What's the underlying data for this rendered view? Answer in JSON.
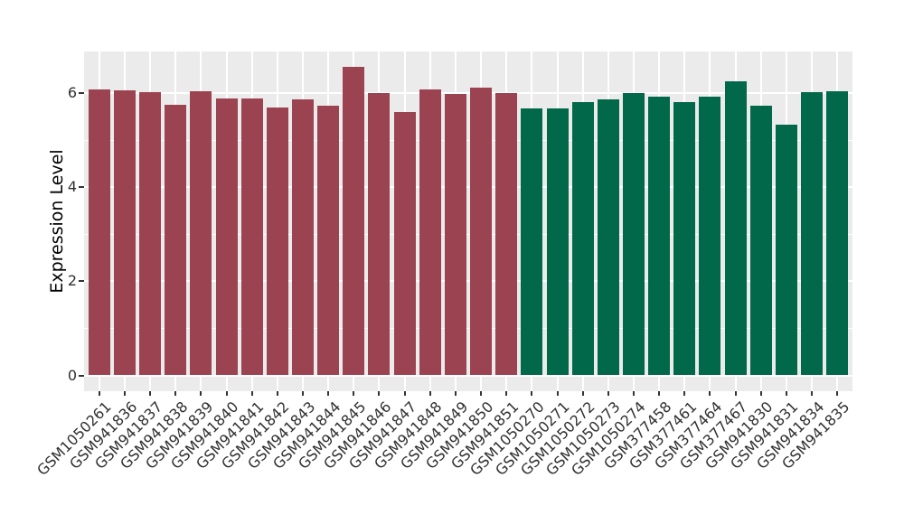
{
  "chart_data": {
    "type": "bar",
    "title": "",
    "xlabel": "",
    "ylabel": "Expression Level",
    "ylim": [
      0,
      6.88
    ],
    "yticks": [
      0,
      2,
      4,
      6
    ],
    "yticks_minor": [
      1,
      3,
      5
    ],
    "grid": "white major and minor gridlines on gray panel",
    "legend_position": "none",
    "panel_bg": "#EBEBEB",
    "grid_color": "#FFFFFF",
    "tick_mark_color": "#333333",
    "axis_text_color": "#303030",
    "groups": [
      {
        "name": "left-group",
        "color": "#9C4351"
      },
      {
        "name": "right-group",
        "color": "#02684A"
      }
    ],
    "categories": [
      "GSM1050261",
      "GSM941836",
      "GSM941837",
      "GSM941838",
      "GSM941839",
      "GSM941840",
      "GSM941841",
      "GSM941842",
      "GSM941843",
      "GSM941844",
      "GSM941845",
      "GSM941846",
      "GSM941847",
      "GSM941848",
      "GSM941849",
      "GSM941850",
      "GSM941851",
      "GSM1050270",
      "GSM1050271",
      "GSM1050272",
      "GSM1050273",
      "GSM1050274",
      "GSM377458",
      "GSM377461",
      "GSM377464",
      "GSM377467",
      "GSM941830",
      "GSM941831",
      "GSM941834",
      "GSM941835"
    ],
    "values": [
      6.07,
      6.06,
      6.02,
      5.74,
      6.03,
      5.89,
      5.89,
      5.7,
      5.86,
      5.72,
      6.55,
      6.0,
      5.59,
      6.08,
      5.98,
      6.12,
      6.0,
      5.68,
      5.68,
      5.8,
      5.86,
      6.0,
      5.92,
      5.81,
      5.93,
      6.24,
      5.73,
      5.33,
      6.02,
      6.04
    ],
    "group_of": [
      0,
      0,
      0,
      0,
      0,
      0,
      0,
      0,
      0,
      0,
      0,
      0,
      0,
      0,
      0,
      0,
      0,
      1,
      1,
      1,
      1,
      1,
      1,
      1,
      1,
      1,
      1,
      1,
      1,
      1
    ]
  }
}
